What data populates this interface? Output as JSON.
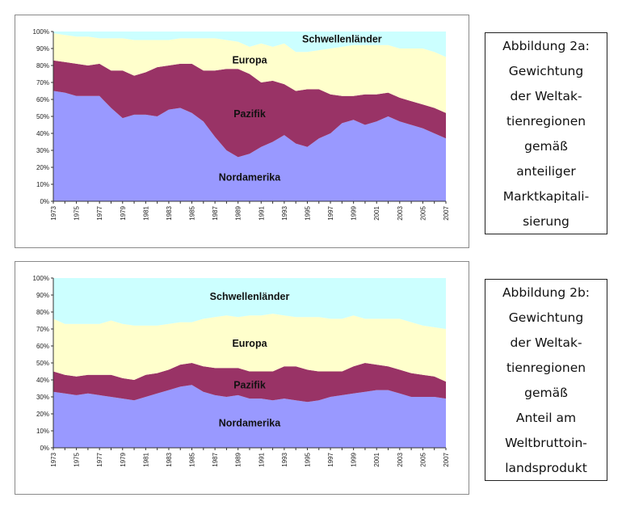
{
  "colors": {
    "nordamerika": "#9999ff",
    "pazifik": "#993366",
    "europa": "#ffffcc",
    "schwellenlaender": "#ccffff"
  },
  "captions": [
    {
      "lines": [
        "Abbildung 2a:",
        "Gewichtung",
        "der Weltak-",
        "tienregionen",
        "gemäß",
        "anteiliger",
        "Marktkapitali-",
        "sierung"
      ]
    },
    {
      "lines": [
        "Abbildung 2b:",
        "Gewichtung",
        "der Weltak-",
        "tienregionen",
        "gemäß",
        "Anteil am",
        "Weltbruttoin-",
        "landsprodukt"
      ]
    }
  ],
  "chart_data": [
    {
      "type": "area",
      "stacked": true,
      "x": [
        1973,
        1974,
        1975,
        1976,
        1977,
        1978,
        1979,
        1980,
        1981,
        1982,
        1983,
        1984,
        1985,
        1986,
        1987,
        1988,
        1989,
        1990,
        1991,
        1992,
        1993,
        1994,
        1995,
        1996,
        1997,
        1998,
        1999,
        2000,
        2001,
        2002,
        2003,
        2004,
        2005,
        2006,
        2007
      ],
      "x_ticks": [
        "1973",
        "1975",
        "1977",
        "1979",
        "1981",
        "1983",
        "1985",
        "1987",
        "1989",
        "1991",
        "1993",
        "1995",
        "1997",
        "1999",
        "2001",
        "2003",
        "2005",
        "2007"
      ],
      "y_ticks": [
        "0%",
        "10%",
        "20%",
        "30%",
        "40%",
        "50%",
        "60%",
        "70%",
        "80%",
        "90%",
        "100%"
      ],
      "ylim": [
        0,
        100
      ],
      "series": [
        {
          "name": "Nordamerika",
          "values": [
            65,
            64,
            62,
            62,
            62,
            55,
            49,
            51,
            51,
            50,
            54,
            55,
            52,
            47,
            38,
            30,
            26,
            28,
            32,
            35,
            39,
            34,
            32,
            37,
            40,
            46,
            48,
            45,
            47,
            50,
            47,
            45,
            43,
            40,
            37
          ]
        },
        {
          "name": "Pazifik",
          "values": [
            18,
            18,
            19,
            18,
            19,
            22,
            28,
            23,
            25,
            29,
            26,
            26,
            29,
            30,
            39,
            48,
            52,
            47,
            38,
            36,
            30,
            31,
            34,
            29,
            23,
            16,
            14,
            18,
            16,
            14,
            14,
            14,
            14,
            15,
            15
          ]
        },
        {
          "name": "Europa",
          "values": [
            16,
            16,
            16,
            17,
            15,
            19,
            19,
            21,
            19,
            16,
            15,
            15,
            15,
            19,
            19,
            17,
            16,
            16,
            23,
            20,
            24,
            23,
            22,
            23,
            27,
            29,
            30,
            29,
            29,
            28,
            29,
            31,
            33,
            33,
            33
          ]
        },
        {
          "name": "Schwellenländer",
          "values": [
            1,
            2,
            3,
            3,
            4,
            4,
            4,
            5,
            5,
            5,
            5,
            4,
            4,
            4,
            4,
            5,
            6,
            9,
            7,
            9,
            7,
            12,
            12,
            11,
            10,
            9,
            8,
            8,
            8,
            8,
            10,
            10,
            10,
            12,
            15
          ]
        }
      ]
    },
    {
      "type": "area",
      "stacked": true,
      "x": [
        1973,
        1974,
        1975,
        1976,
        1977,
        1978,
        1979,
        1980,
        1981,
        1982,
        1983,
        1984,
        1985,
        1986,
        1987,
        1988,
        1989,
        1990,
        1991,
        1992,
        1993,
        1994,
        1995,
        1996,
        1997,
        1998,
        1999,
        2000,
        2001,
        2002,
        2003,
        2004,
        2005,
        2006,
        2007
      ],
      "x_ticks": [
        "1973",
        "1975",
        "1977",
        "1979",
        "1981",
        "1983",
        "1985",
        "1987",
        "1989",
        "1991",
        "1993",
        "1995",
        "1997",
        "1999",
        "2001",
        "2003",
        "2005",
        "2007"
      ],
      "y_ticks": [
        "0%",
        "10%",
        "20%",
        "30%",
        "40%",
        "50%",
        "60%",
        "70%",
        "80%",
        "90%",
        "100%"
      ],
      "ylim": [
        0,
        100
      ],
      "series": [
        {
          "name": "Nordamerika",
          "values": [
            33,
            32,
            31,
            32,
            31,
            30,
            29,
            28,
            30,
            32,
            34,
            36,
            37,
            33,
            31,
            30,
            31,
            29,
            29,
            28,
            29,
            28,
            27,
            28,
            30,
            31,
            32,
            33,
            34,
            34,
            32,
            30,
            30,
            30,
            29
          ]
        },
        {
          "name": "Pazifik",
          "values": [
            12,
            11,
            11,
            11,
            12,
            13,
            12,
            12,
            13,
            12,
            12,
            13,
            13,
            15,
            16,
            17,
            16,
            16,
            16,
            17,
            19,
            20,
            19,
            17,
            15,
            14,
            16,
            17,
            15,
            14,
            14,
            14,
            13,
            12,
            10
          ]
        },
        {
          "name": "Europa",
          "values": [
            31,
            30,
            31,
            30,
            30,
            32,
            32,
            32,
            29,
            28,
            27,
            25,
            24,
            28,
            30,
            31,
            30,
            33,
            33,
            34,
            30,
            29,
            31,
            32,
            31,
            31,
            30,
            26,
            27,
            28,
            30,
            30,
            29,
            29,
            31
          ]
        },
        {
          "name": "Schwellenländer",
          "values": [
            24,
            27,
            27,
            27,
            27,
            25,
            27,
            28,
            28,
            28,
            27,
            26,
            26,
            24,
            23,
            22,
            23,
            22,
            22,
            21,
            22,
            23,
            23,
            23,
            24,
            24,
            22,
            24,
            24,
            24,
            24,
            26,
            28,
            29,
            30
          ]
        }
      ]
    }
  ]
}
